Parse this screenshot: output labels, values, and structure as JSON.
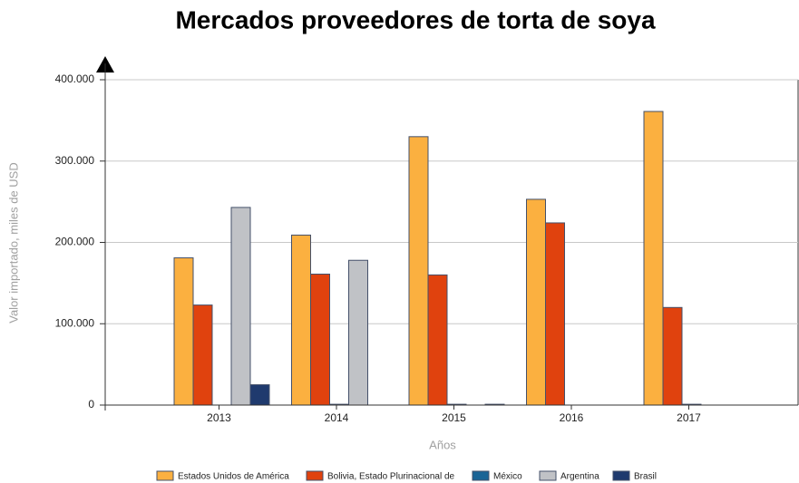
{
  "chart_data": {
    "type": "bar",
    "title": "Mercados proveedores de torta de soya",
    "x_label": "Años",
    "y_label": "Valor importado, miles de USD",
    "categories": [
      "2013",
      "2014",
      "2015",
      "2016",
      "2017"
    ],
    "series": [
      {
        "name": "Estados Unidos de América",
        "color": "#fbb040",
        "values": [
          181000,
          209000,
          330000,
          253000,
          361000
        ]
      },
      {
        "name": "Bolivia, Estado Plurinacional de",
        "color": "#e0420e",
        "values": [
          123000,
          161000,
          160000,
          224000,
          120000
        ]
      },
      {
        "name": "México",
        "color": "#1a6496",
        "values": [
          0,
          1000,
          1000,
          0,
          1000
        ]
      },
      {
        "name": "Argentina",
        "color": "#c0c2c6",
        "values": [
          243000,
          178000,
          0,
          0,
          0
        ]
      },
      {
        "name": "Brasil",
        "color": "#1f3a6e",
        "values": [
          25000,
          0,
          1000,
          0,
          0
        ]
      }
    ],
    "ylim": [
      0,
      400000
    ],
    "yticks": [
      0,
      {
        "value": 100000,
        "label": "100.000"
      },
      {
        "value": 200000,
        "label": "200.000"
      },
      {
        "value": 300000,
        "label": "300.000"
      },
      {
        "value": 400000,
        "label": "400.000"
      }
    ],
    "grid": true,
    "legend": "bottom"
  }
}
